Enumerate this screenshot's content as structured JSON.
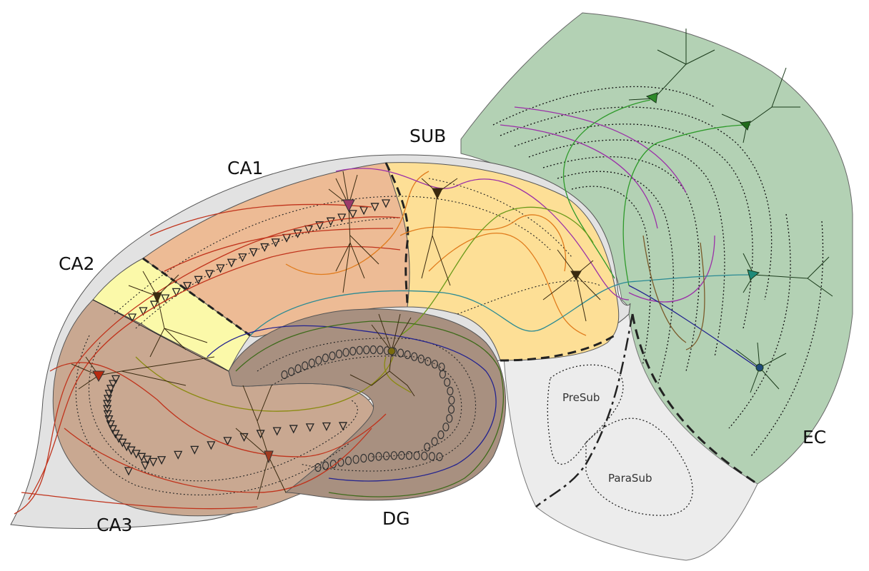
{
  "labels": {
    "ca1": "CA1",
    "ca2": "CA2",
    "ca3": "CA3",
    "dg": "DG",
    "sub": "SUB",
    "ec": "EC",
    "presub": "PreSub",
    "parasub": "ParaSub"
  },
  "colors": {
    "outer_gray": "#e2e2e2",
    "ca1_fill": "#edbb95",
    "ca2_fill": "#fbf9a9",
    "ca3_fill": "#c9a891",
    "dg_fill": "#a89080",
    "sub_fill": "#fddf96",
    "ec_fill": "#b3d1b4",
    "presub_fill": "#ececec",
    "fiber_red": "#c0331c",
    "fiber_orange": "#e07b1c",
    "fiber_purple": "#9b2fa8",
    "fiber_green": "#2e9a2a",
    "fiber_teal": "#2a8a94",
    "fiber_blue": "#23238f",
    "fiber_olive": "#8a8a10"
  },
  "icons": [
    "pyramidal-neuron-icon",
    "granule-cell-icon",
    "stellate-cell-icon"
  ]
}
